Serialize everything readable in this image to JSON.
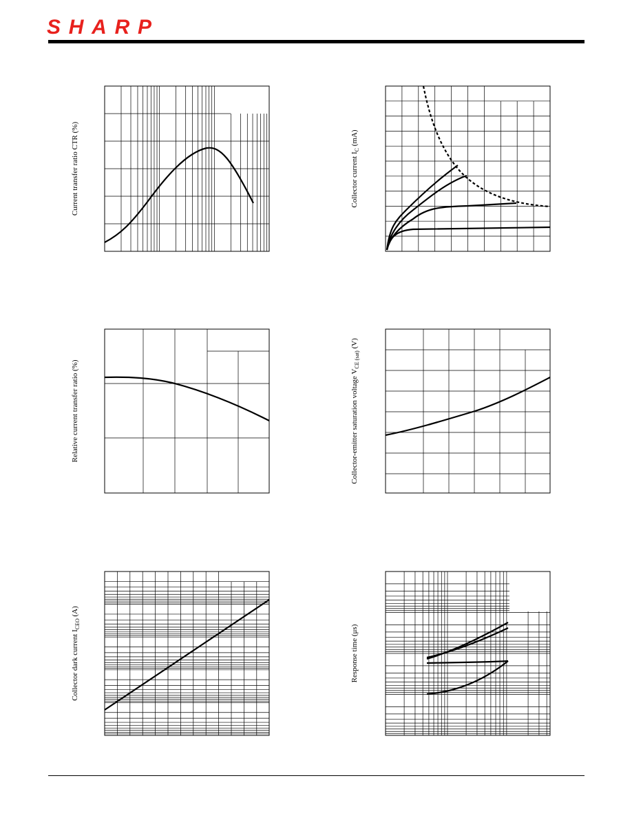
{
  "header": {
    "logo": "SHARP"
  },
  "charts": [
    {
      "y_label": {
        "text": "Current transfer ratio CTR (%)"
      }
    },
    {
      "y_label": {
        "text": "Collector current I",
        "sub": "C",
        "after": " (mA)"
      }
    },
    {
      "y_label": {
        "text": "Relative current transfer ratio (%)"
      }
    },
    {
      "y_label": {
        "text": "Collector-emitter saturation voltage V",
        "sub": "CE (sat)",
        "after": " (V)"
      }
    },
    {
      "y_label": {
        "text": "Collector dark current I",
        "sub": "CEO",
        "after": " (A)"
      }
    },
    {
      "y_label": {
        "text": "Response time (μs)"
      }
    }
  ]
}
